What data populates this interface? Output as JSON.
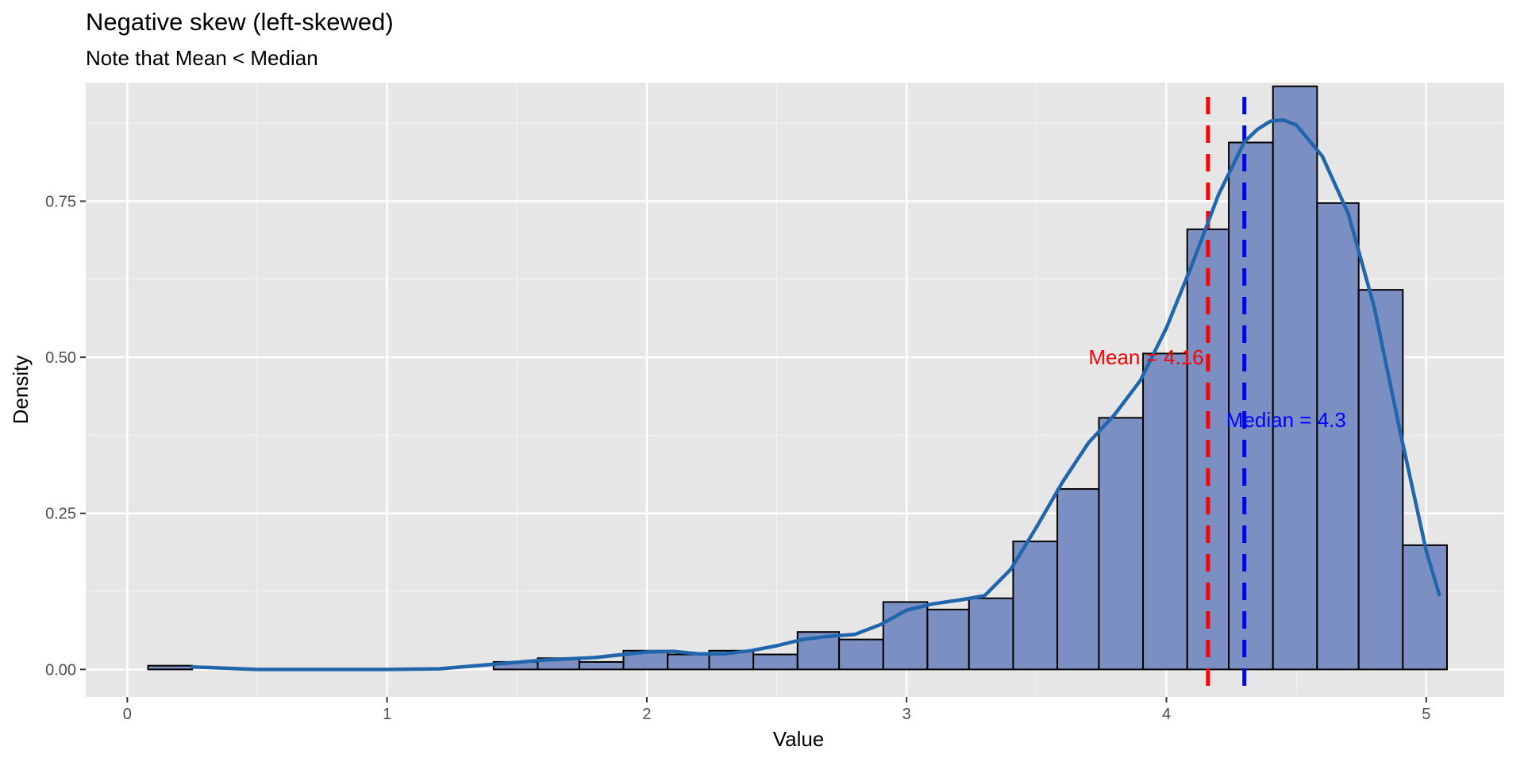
{
  "chart_data": {
    "type": "bar",
    "title": "Negative skew (left-skewed)",
    "subtitle": "Note that Mean < Median",
    "xlabel": "Value",
    "ylabel": "Density",
    "xlim": [
      -0.16,
      5.3
    ],
    "ylim": [
      -0.044,
      0.94
    ],
    "x_ticks": [
      0,
      1,
      2,
      3,
      4,
      5
    ],
    "x_tick_labels": [
      "0",
      "1",
      "2",
      "3",
      "4",
      "5"
    ],
    "y_ticks": [
      0,
      0.25,
      0.5,
      0.75
    ],
    "y_tick_labels": [
      "0.00",
      "0.25",
      "0.50",
      "0.75"
    ],
    "grid": true,
    "colors": {
      "panel": "#e6e6e6",
      "bar_fill": "#7b8fc2",
      "bar_stroke": "#000000",
      "density_line": "#2166ac",
      "mean_line": "#ff0000",
      "median_line": "#0000ff"
    },
    "bins": [
      {
        "x0": 0.08,
        "x1": 0.25,
        "density": 0.006
      },
      {
        "x0": 1.41,
        "x1": 1.58,
        "density": 0.012
      },
      {
        "x0": 1.58,
        "x1": 1.74,
        "density": 0.018
      },
      {
        "x0": 1.74,
        "x1": 1.91,
        "density": 0.012
      },
      {
        "x0": 1.91,
        "x1": 2.08,
        "density": 0.03
      },
      {
        "x0": 2.08,
        "x1": 2.24,
        "density": 0.024
      },
      {
        "x0": 2.24,
        "x1": 2.41,
        "density": 0.03
      },
      {
        "x0": 2.41,
        "x1": 2.58,
        "density": 0.024
      },
      {
        "x0": 2.58,
        "x1": 2.74,
        "density": 0.06
      },
      {
        "x0": 2.74,
        "x1": 2.91,
        "density": 0.048
      },
      {
        "x0": 2.91,
        "x1": 3.08,
        "density": 0.108
      },
      {
        "x0": 3.08,
        "x1": 3.24,
        "density": 0.096
      },
      {
        "x0": 3.24,
        "x1": 3.41,
        "density": 0.114
      },
      {
        "x0": 3.41,
        "x1": 3.58,
        "density": 0.205
      },
      {
        "x0": 3.58,
        "x1": 3.74,
        "density": 0.289
      },
      {
        "x0": 3.74,
        "x1": 3.91,
        "density": 0.403
      },
      {
        "x0": 3.91,
        "x1": 4.08,
        "density": 0.506
      },
      {
        "x0": 4.08,
        "x1": 4.24,
        "density": 0.705
      },
      {
        "x0": 4.24,
        "x1": 4.41,
        "density": 0.844
      },
      {
        "x0": 4.41,
        "x1": 4.58,
        "density": 0.934
      },
      {
        "x0": 4.58,
        "x1": 4.74,
        "density": 0.747
      },
      {
        "x0": 4.74,
        "x1": 4.91,
        "density": 0.608
      },
      {
        "x0": 4.91,
        "x1": 5.08,
        "density": 0.199
      }
    ],
    "density_curve": {
      "x": [
        0.25,
        0.5,
        0.75,
        1.0,
        1.2,
        1.4,
        1.6,
        1.8,
        2.0,
        2.1,
        2.2,
        2.3,
        2.4,
        2.5,
        2.6,
        2.7,
        2.8,
        2.9,
        3.0,
        3.1,
        3.2,
        3.3,
        3.4,
        3.5,
        3.6,
        3.7,
        3.8,
        3.9,
        4.0,
        4.1,
        4.2,
        4.3,
        4.35,
        4.4,
        4.45,
        4.5,
        4.6,
        4.7,
        4.8,
        4.9,
        5.0,
        5.05
      ],
      "y": [
        0.004,
        0.0,
        0.0,
        0.0,
        0.001,
        0.008,
        0.015,
        0.019,
        0.028,
        0.029,
        0.025,
        0.025,
        0.03,
        0.038,
        0.048,
        0.053,
        0.056,
        0.072,
        0.095,
        0.105,
        0.111,
        0.118,
        0.16,
        0.228,
        0.3,
        0.363,
        0.408,
        0.463,
        0.547,
        0.65,
        0.76,
        0.845,
        0.865,
        0.878,
        0.88,
        0.872,
        0.822,
        0.73,
        0.58,
        0.38,
        0.19,
        0.12
      ]
    },
    "reference_lines": [
      {
        "name": "Mean",
        "value": 4.16,
        "label": "Mean = 4.16",
        "label_x": 3.7,
        "label_y": 0.5
      },
      {
        "name": "Median",
        "value": 4.3,
        "label": "Median = 4.3",
        "label_x": 4.23,
        "label_y": 0.4
      }
    ]
  }
}
